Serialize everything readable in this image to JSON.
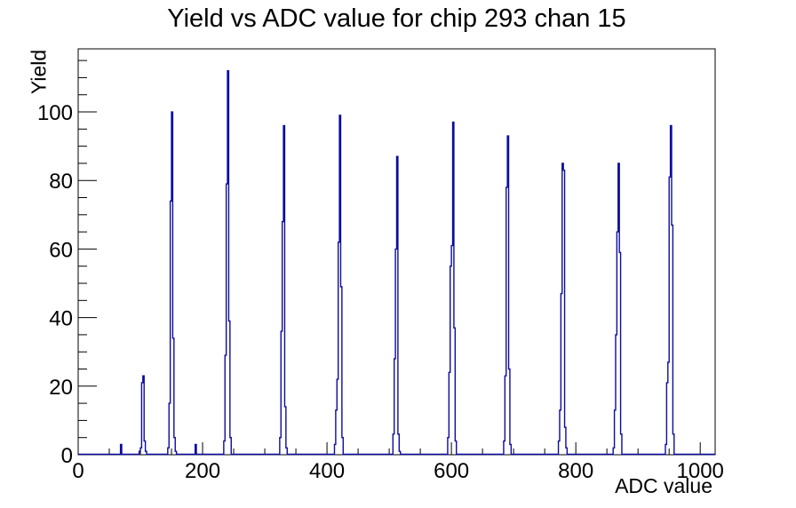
{
  "page": {
    "background": "#ffffff"
  },
  "chart_data": {
    "type": "line",
    "style": "step-histogram",
    "title": "Yield vs ADC value for chip 293 chan 15",
    "xlabel": "ADC value",
    "ylabel": "Yield",
    "xlim": [
      0,
      1024
    ],
    "ylim": [
      0,
      118.4
    ],
    "x_major_ticks": [
      0,
      200,
      400,
      600,
      800,
      1000
    ],
    "x_minor_step": 50,
    "y_major_ticks": [
      0,
      20,
      40,
      60,
      80,
      100
    ],
    "y_minor_step": 5,
    "grid": false,
    "legend": false,
    "line_color": "#0c0c9e",
    "axis_color": "#000000",
    "text_color": "#000000",
    "bin_width_adc": 2,
    "clusters": [
      {
        "start_adc": 68,
        "values": [
          3
        ]
      },
      {
        "start_adc": 98,
        "values": [
          1,
          2,
          21,
          23,
          4,
          1
        ]
      },
      {
        "start_adc": 144,
        "values": [
          2,
          15,
          74,
          100,
          34,
          5,
          1
        ]
      },
      {
        "start_adc": 188,
        "values": [
          3
        ]
      },
      {
        "start_adc": 234,
        "values": [
          4,
          29,
          79,
          112,
          39,
          5
        ]
      },
      {
        "start_adc": 324,
        "values": [
          5,
          36,
          68,
          96,
          14,
          2
        ]
      },
      {
        "start_adc": 412,
        "values": [
          3,
          13,
          22,
          62,
          99,
          49,
          5
        ]
      },
      {
        "start_adc": 506,
        "values": [
          6,
          28,
          60,
          87,
          6,
          1
        ]
      },
      {
        "start_adc": 594,
        "values": [
          5,
          24,
          55,
          61,
          97,
          37,
          4
        ]
      },
      {
        "start_adc": 684,
        "values": [
          4,
          23,
          78,
          93,
          25,
          3
        ]
      },
      {
        "start_adc": 772,
        "values": [
          4,
          13,
          47,
          85,
          83,
          8,
          2
        ]
      },
      {
        "start_adc": 860,
        "values": [
          2,
          13,
          35,
          65,
          85,
          59,
          6
        ]
      },
      {
        "start_adc": 944,
        "values": [
          3,
          21,
          27,
          81,
          96,
          67,
          6
        ]
      }
    ],
    "peak_summary": {
      "peak_centers_adc": [
        105,
        151,
        241,
        331,
        421,
        513,
        603,
        691,
        779,
        869,
        953
      ],
      "peak_heights": [
        23,
        100,
        112,
        96,
        99,
        87,
        97,
        93,
        85,
        85,
        96
      ]
    }
  }
}
